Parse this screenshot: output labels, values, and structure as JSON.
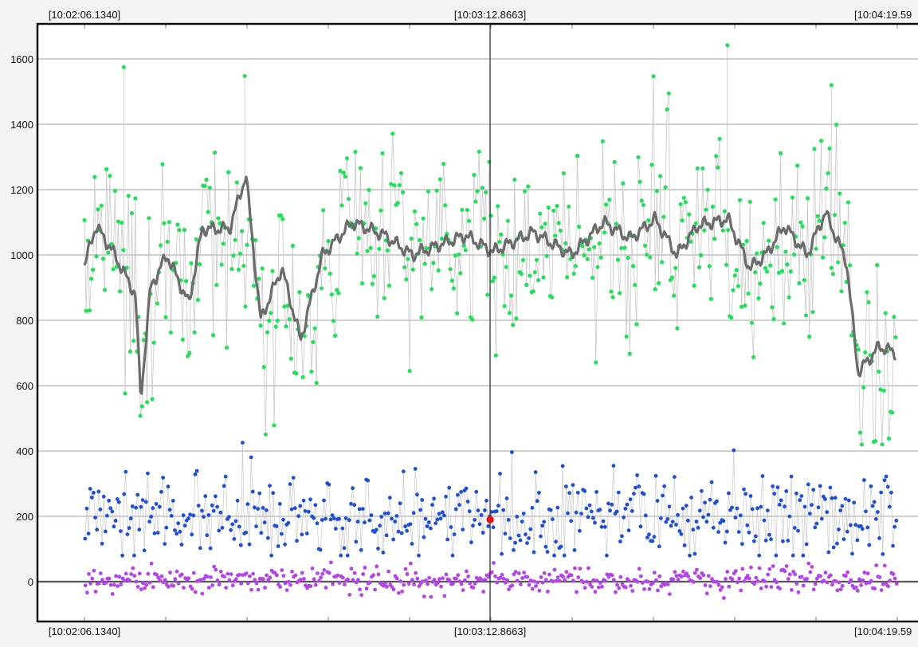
{
  "chart_data": {
    "type": "scatter",
    "title": "",
    "xlabel": "",
    "ylabel": "",
    "x_range": [
      "10:02:06.1340",
      "10:04:19.59"
    ],
    "x_tick_labels": {
      "top": [
        "[10:02:06.1340]",
        "[10:03:12.8663]",
        "[10:04:19.59"
      ],
      "bottom": [
        "[10:02:06.1340]",
        "[10:03:12.8663]",
        "[10:04:19.59"
      ]
    },
    "cursor_label": "[10:03:12.8663]",
    "y_ticks": [
      0,
      200,
      400,
      600,
      800,
      1000,
      1200,
      1400,
      1600
    ],
    "ylim": [
      -120,
      1710
    ],
    "grid": "horizontal",
    "legend": "none",
    "colors": {
      "upper_points": "#22e05a",
      "upper_trend": "#6b6b6b",
      "middle_points": "#1f4fd6",
      "lower_points": "#b545e8",
      "connector": "#c8c8c8",
      "highlight": "#e01414",
      "grid": "#cfcfcf",
      "frame": "#111111"
    },
    "series": [
      {
        "role": "upper",
        "style": "markers",
        "approx_mean": 1000,
        "approx_range": [
          420,
          1645
        ],
        "notable_points": [
          {
            "t": "10:02:12.6",
            "y": 1575
          },
          {
            "t": "10:02:32.5",
            "y": 1548
          },
          {
            "t": "10:03:51.9",
            "y": 1642
          },
          {
            "t": "10:04:09.0",
            "y": 1520
          }
        ]
      },
      {
        "role": "upper-trend",
        "style": "line",
        "points": [
          {
            "t": "10:02:06.1",
            "y": 965
          },
          {
            "t": "10:02:08.0",
            "y": 1090
          },
          {
            "t": "10:02:10.8",
            "y": 1010
          },
          {
            "t": "10:02:14.5",
            "y": 880
          },
          {
            "t": "10:02:15.4",
            "y": 560
          },
          {
            "t": "10:02:17.0",
            "y": 900
          },
          {
            "t": "10:02:19.7",
            "y": 1000
          },
          {
            "t": "10:02:23.3",
            "y": 850
          },
          {
            "t": "10:02:25.5",
            "y": 1080
          },
          {
            "t": "10:02:30.0",
            "y": 1080
          },
          {
            "t": "10:02:32.7",
            "y": 1245
          },
          {
            "t": "10:02:35.1",
            "y": 800
          },
          {
            "t": "10:02:38.6",
            "y": 960
          },
          {
            "t": "10:02:41.7",
            "y": 740
          },
          {
            "t": "10:02:45.3",
            "y": 1000
          },
          {
            "t": "10:02:50.2",
            "y": 1100
          },
          {
            "t": "10:02:55.5",
            "y": 1060
          },
          {
            "t": "10:03:00.0",
            "y": 1000
          },
          {
            "t": "10:03:08.8",
            "y": 1060
          },
          {
            "t": "10:03:13.3",
            "y": 1010
          },
          {
            "t": "10:03:20.0",
            "y": 1070
          },
          {
            "t": "10:03:26.2",
            "y": 1000
          },
          {
            "t": "10:03:31.5",
            "y": 1100
          },
          {
            "t": "10:03:36.0",
            "y": 1050
          },
          {
            "t": "10:03:40.0",
            "y": 1110
          },
          {
            "t": "10:03:43.6",
            "y": 1000
          },
          {
            "t": "10:03:47.0",
            "y": 1090
          },
          {
            "t": "10:03:52.0",
            "y": 1110
          },
          {
            "t": "10:03:55.6",
            "y": 960
          },
          {
            "t": "10:03:58.2",
            "y": 1000
          },
          {
            "t": "10:04:01.3",
            "y": 1090
          },
          {
            "t": "10:04:05.0",
            "y": 1000
          },
          {
            "t": "10:04:08.0",
            "y": 1130
          },
          {
            "t": "10:04:11.5",
            "y": 980
          },
          {
            "t": "10:04:13.4",
            "y": 640
          },
          {
            "t": "10:04:16.9",
            "y": 720
          },
          {
            "t": "10:04:19.6",
            "y": 700
          }
        ]
      },
      {
        "role": "middle",
        "style": "markers",
        "approx_mean": 200,
        "approx_range": [
          80,
          465
        ]
      },
      {
        "role": "lower",
        "style": "markers",
        "approx_mean": 5,
        "approx_range": [
          -50,
          70
        ]
      }
    ],
    "highlight_point": {
      "t": "10:03:12.8663",
      "y": 190
    }
  }
}
